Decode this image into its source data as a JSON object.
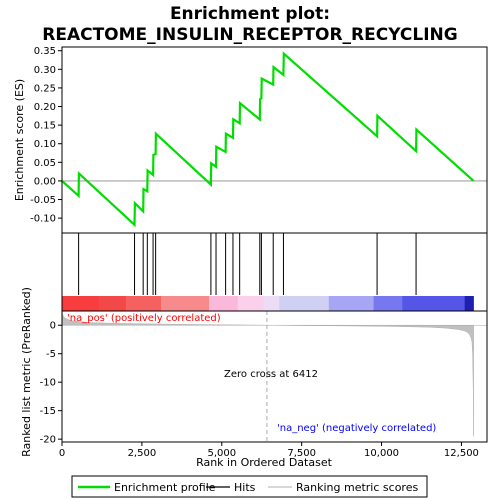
{
  "chart_data": {
    "type": "line",
    "title_line1": "Enrichment plot:",
    "title_line2": "REACTOME_INSULIN_RECEPTOR_RECYCLING",
    "es_panel": {
      "ylabel": "Enrichment score (ES)",
      "ylim": [
        -0.14,
        0.36
      ],
      "yticks": [
        "0.35",
        "0.30",
        "0.25",
        "0.20",
        "0.15",
        "0.10",
        "0.05",
        "0.00",
        "-0.05",
        "-0.10"
      ],
      "ytick_values": [
        0.35,
        0.3,
        0.25,
        0.2,
        0.15,
        0.1,
        0.05,
        0.0,
        -0.05,
        -0.1
      ],
      "series": [
        {
          "name": "Enrichment profile",
          "color": "#00dd00",
          "x": [
            0,
            520,
            530,
            2270,
            2280,
            2540,
            2550,
            2670,
            2680,
            2850,
            2860,
            2930,
            2940,
            4660,
            4670,
            4820,
            4830,
            5120,
            5130,
            5350,
            5360,
            5560,
            5570,
            6190,
            6200,
            6240,
            6250,
            6610,
            6620,
            6930,
            6940,
            9860,
            9870,
            11080,
            11090,
            12880
          ],
          "y": [
            0.0,
            -0.04,
            0.02,
            -0.118,
            -0.06,
            -0.082,
            -0.022,
            -0.028,
            0.028,
            0.016,
            0.07,
            0.072,
            0.127,
            -0.01,
            0.047,
            0.038,
            0.092,
            0.078,
            0.127,
            0.116,
            0.166,
            0.155,
            0.209,
            0.165,
            0.22,
            0.222,
            0.275,
            0.259,
            0.306,
            0.285,
            0.342,
            0.12,
            0.175,
            0.08,
            0.138,
            0.0
          ]
        }
      ]
    },
    "hits": [
      520,
      2270,
      2540,
      2670,
      2850,
      2930,
      4660,
      4820,
      5120,
      5350,
      5560,
      6190,
      6240,
      6610,
      6930,
      9860,
      11080
    ],
    "rank_panel": {
      "ylabel": "Ranked list metric (PreRanked)",
      "xlabel": "Rank in Ordered Dataset",
      "ylim": [
        -20.5,
        2.5
      ],
      "yticks": [
        "0",
        "-5",
        "-10",
        "-15",
        "-20"
      ],
      "ytick_values": [
        0,
        -5,
        -10,
        -15,
        -20
      ],
      "x": [
        0,
        40,
        100,
        300,
        800,
        1500,
        2500,
        3500,
        4500,
        5500,
        6412,
        7500,
        8500,
        9500,
        10500,
        11500,
        12000,
        12400,
        12600,
        12700,
        12760,
        12800,
        12830,
        12850,
        12870,
        12880
      ],
      "y": [
        2.2,
        1.6,
        1.2,
        0.8,
        0.5,
        0.35,
        0.25,
        0.18,
        0.12,
        0.06,
        0.0,
        -0.06,
        -0.1,
        -0.15,
        -0.22,
        -0.35,
        -0.5,
        -0.75,
        -1.0,
        -1.3,
        -1.7,
        -2.2,
        -3.0,
        -5.0,
        -12.0,
        -19.5
      ],
      "fill_color": "#c0c0c0",
      "zero_cross_rank": 6412,
      "zero_cross_label": "Zero cross at 6412",
      "pos_label": "'na_pos' (positively correlated)",
      "neg_label": "'na_neg' (negatively correlated)",
      "pos_color": "#ff0000",
      "neg_color": "#0000ff"
    },
    "xlim": [
      0,
      13300
    ],
    "xticks": [
      "0",
      "2,500",
      "5,000",
      "7,500",
      "10,000",
      "12,500"
    ],
    "xtick_values": [
      0,
      2500,
      5000,
      7500,
      10000,
      12500
    ],
    "colorbar": {
      "edges": [
        0,
        1150,
        2000,
        3100,
        4600,
        5500,
        6300,
        6800,
        8350,
        9750,
        10650,
        12600,
        12880
      ],
      "colors": [
        "#f73d3d",
        "#f34848",
        "#f56060",
        "#f78b8b",
        "#fab8da",
        "#fad0ea",
        "#eddcf5",
        "#d0d0f5",
        "#a6a6f5",
        "#7777f0",
        "#5555e8",
        "#2020b0"
      ]
    },
    "legend": [
      {
        "label": "Enrichment profile",
        "kind": "line",
        "color": "#00dd00"
      },
      {
        "label": "Hits",
        "kind": "line",
        "color": "#000000"
      },
      {
        "label": "Ranking metric scores",
        "kind": "line",
        "color": "#c0c0c0"
      }
    ]
  }
}
